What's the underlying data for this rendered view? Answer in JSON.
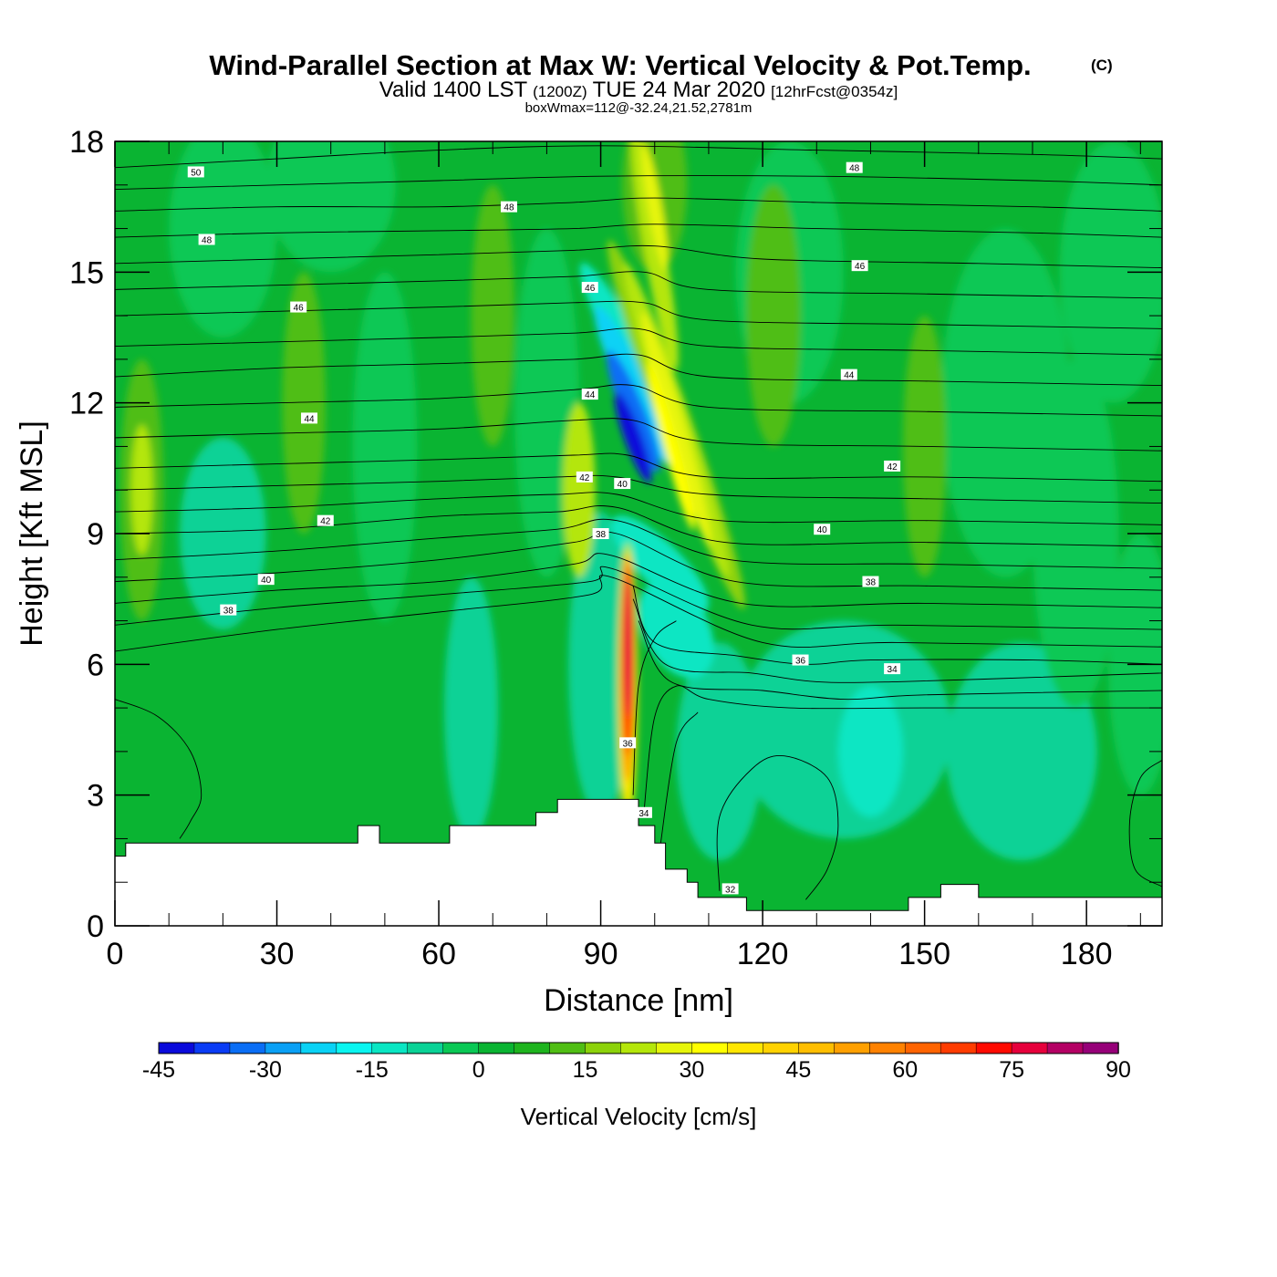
{
  "chart_data": {
    "type": "heatmap",
    "title": "Wind-Parallel Section at Max W: Vertical Velocity & Pot.Temp.",
    "copyright_mark": "(C)",
    "subtitle": {
      "valid_label": "Valid 1400 LST",
      "zulu": "(1200Z)",
      "date": "TUE 24 Mar 2020",
      "forecast": "[12hrFcst@0354z]"
    },
    "box_info": "boxWmax=112@-32.24,21.52,2781m",
    "xlabel": "Distance [nm]",
    "ylabel": "Height [Kft MSL]",
    "xlim": [
      0,
      194
    ],
    "ylim": [
      0,
      18
    ],
    "x_ticks": [
      "0",
      "30",
      "60",
      "90",
      "120",
      "150",
      "180"
    ],
    "y_ticks": [
      "0",
      "3",
      "6",
      "9",
      "12",
      "15",
      "18"
    ],
    "colorbar": {
      "label": "Vertical Velocity [cm/s]",
      "min": -45,
      "max": 90,
      "step": 5,
      "tick_labels": [
        "-45",
        "-30",
        "-15",
        "0",
        "15",
        "30",
        "45",
        "60",
        "75",
        "90"
      ],
      "colors": [
        "#0a0adb",
        "#0a3cf5",
        "#0a6ef5",
        "#0aa0f5",
        "#0ad2f5",
        "#0af5f0",
        "#0ae6c3",
        "#0ad296",
        "#0ac855",
        "#0ab432",
        "#1eb41e",
        "#50be14",
        "#8cd20a",
        "#b4e60a",
        "#e6f50a",
        "#ffff00",
        "#ffe600",
        "#ffd200",
        "#ffbe00",
        "#ffa000",
        "#ff8200",
        "#ff6400",
        "#ff3c00",
        "#ff0a00",
        "#e6003c",
        "#b40064",
        "#960078"
      ]
    },
    "contour_labels": [
      {
        "text": "50",
        "x": 15,
        "y": 17.3
      },
      {
        "text": "48",
        "x": 73,
        "y": 16.5
      },
      {
        "text": "48",
        "x": 17,
        "y": 15.75
      },
      {
        "text": "48",
        "x": 137,
        "y": 17.4
      },
      {
        "text": "46",
        "x": 88,
        "y": 14.65
      },
      {
        "text": "46",
        "x": 138,
        "y": 15.15
      },
      {
        "text": "46",
        "x": 34,
        "y": 14.2
      },
      {
        "text": "44",
        "x": 88,
        "y": 12.2
      },
      {
        "text": "44",
        "x": 136,
        "y": 12.65
      },
      {
        "text": "44",
        "x": 36,
        "y": 11.65
      },
      {
        "text": "42",
        "x": 87,
        "y": 10.3
      },
      {
        "text": "42",
        "x": 144,
        "y": 10.55
      },
      {
        "text": "42",
        "x": 39,
        "y": 9.3
      },
      {
        "text": "40",
        "x": 94,
        "y": 10.15
      },
      {
        "text": "40",
        "x": 131,
        "y": 9.1
      },
      {
        "text": "40",
        "x": 28,
        "y": 7.95
      },
      {
        "text": "38",
        "x": 90,
        "y": 9.0
      },
      {
        "text": "38",
        "x": 140,
        "y": 7.9
      },
      {
        "text": "38",
        "x": 21,
        "y": 7.25
      },
      {
        "text": "36",
        "x": 127,
        "y": 6.1
      },
      {
        "text": "34",
        "x": 144,
        "y": 5.9
      },
      {
        "text": "36",
        "x": 95,
        "y": 4.2
      },
      {
        "text": "34",
        "x": 98,
        "y": 2.6
      },
      {
        "text": "32",
        "x": 114,
        "y": 0.85
      }
    ],
    "terrain": [
      [
        0,
        1.6
      ],
      [
        2,
        1.6
      ],
      [
        2,
        1.9
      ],
      [
        45,
        1.9
      ],
      [
        45,
        2.3
      ],
      [
        49,
        2.3
      ],
      [
        49,
        1.9
      ],
      [
        62,
        1.9
      ],
      [
        62,
        2.3
      ],
      [
        78,
        2.3
      ],
      [
        78,
        2.6
      ],
      [
        82,
        2.6
      ],
      [
        82,
        2.9
      ],
      [
        97,
        2.9
      ],
      [
        97,
        2.3
      ],
      [
        100,
        2.3
      ],
      [
        100,
        1.9
      ],
      [
        102,
        1.9
      ],
      [
        102,
        1.3
      ],
      [
        106,
        1.3
      ],
      [
        106,
        1.0
      ],
      [
        108,
        1.0
      ],
      [
        108,
        0.65
      ],
      [
        117,
        0.65
      ],
      [
        117,
        0.35
      ],
      [
        147,
        0.35
      ],
      [
        147,
        0.65
      ],
      [
        153,
        0.65
      ],
      [
        153,
        0.95
      ],
      [
        160,
        0.95
      ],
      [
        160,
        0.65
      ],
      [
        194,
        0.65
      ]
    ]
  }
}
